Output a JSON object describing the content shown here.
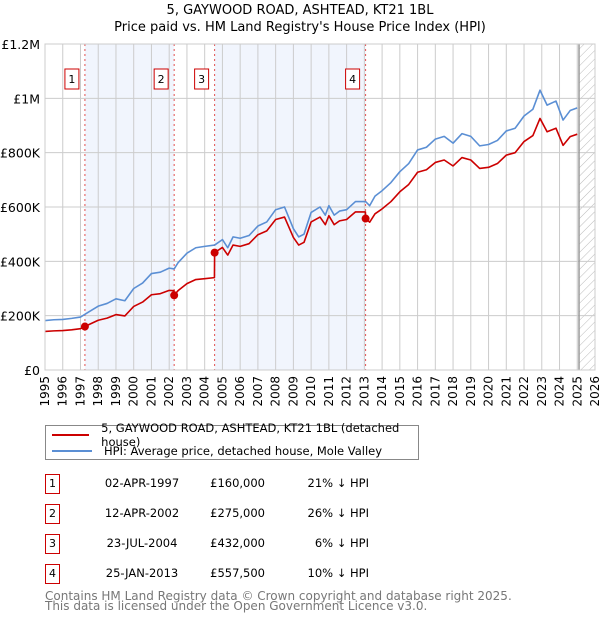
{
  "title": "5, GAYWOOD ROAD, ASHTEAD, KT21 1BL",
  "subtitle": "Price paid vs. HM Land Registry's House Price Index (HPI)",
  "colors": {
    "property": "#cc0000",
    "hpi": "#5b8fd4",
    "shade": "#f1f5fd",
    "grid": "#cccccc"
  },
  "chart_data": {
    "type": "line",
    "title": "5, GAYWOOD ROAD, ASHTEAD, KT21 1BL",
    "xlim": [
      1995,
      2026
    ],
    "ylim": [
      0,
      1200000
    ],
    "x_ticks": [
      "1995",
      "1996",
      "1997",
      "1998",
      "1999",
      "2000",
      "2001",
      "2002",
      "2003",
      "2004",
      "2005",
      "2006",
      "2007",
      "2008",
      "2009",
      "2010",
      "2011",
      "2012",
      "2013",
      "2014",
      "2015",
      "2016",
      "2017",
      "2018",
      "2019",
      "2020",
      "2021",
      "2022",
      "2023",
      "2024",
      "2025",
      "2026"
    ],
    "y_ticks": [
      {
        "v": 0,
        "label": "£0"
      },
      {
        "v": 200000,
        "label": "£200K"
      },
      {
        "v": 400000,
        "label": "£400K"
      },
      {
        "v": 600000,
        "label": "£600K"
      },
      {
        "v": 800000,
        "label": "£800K"
      },
      {
        "v": 1000000,
        "label": "£1M"
      },
      {
        "v": 1200000,
        "label": "£1.2M"
      }
    ],
    "grid": true,
    "forecast_start": 2025.1,
    "series": [
      {
        "name": "5, GAYWOOD ROAD, ASHTEAD, KT21 1BL (detached house)",
        "color": "#cc0000",
        "x": [
          1995,
          1995.5,
          1996,
          1996.5,
          1997,
          1997.25,
          1997.5,
          1998,
          1998.5,
          1999,
          1999.5,
          2000,
          2000.5,
          2001,
          2001.5,
          2002,
          2002.27,
          2002.28,
          2002.5,
          2003,
          2003.5,
          2004,
          2004.55,
          2004.56,
          2005,
          2005.3,
          2005.6,
          2006,
          2006.5,
          2007,
          2007.5,
          2008,
          2008.5,
          2009,
          2009.3,
          2009.6,
          2010,
          2010.5,
          2010.8,
          2011,
          2011.3,
          2011.6,
          2012,
          2012.5,
          2013.06,
          2013.07,
          2013.3,
          2013.6,
          2014,
          2014.5,
          2015,
          2015.5,
          2016,
          2016.5,
          2017,
          2017.5,
          2018,
          2018.5,
          2019,
          2019.5,
          2020,
          2020.5,
          2021,
          2021.5,
          2022,
          2022.5,
          2022.9,
          2023.3,
          2023.8,
          2024.2,
          2024.6,
          2025.0
        ],
        "y": [
          142000,
          144000,
          145000,
          148000,
          152000,
          160000,
          168000,
          183000,
          191000,
          204000,
          199000,
          234000,
          250000,
          277000,
          281000,
          293000,
          292000,
          275000,
          292000,
          318000,
          333000,
          336000,
          340000,
          432000,
          451000,
          423000,
          460000,
          455000,
          465000,
          498000,
          512000,
          554000,
          563000,
          488000,
          460000,
          470000,
          545000,
          563000,
          535000,
          568000,
          535000,
          549000,
          554000,
          582000,
          582000,
          557500,
          544000,
          575000,
          593000,
          620000,
          656000,
          683000,
          728000,
          737000,
          764000,
          773000,
          751000,
          782000,
          773000,
          742000,
          746000,
          760000,
          791000,
          800000,
          841000,
          863000,
          926000,
          877000,
          890000,
          827000,
          859000,
          868000
        ]
      },
      {
        "name": "HPI: Average price, detached house, Mole Valley",
        "color": "#5b8fd4",
        "x": [
          1995,
          1995.5,
          1996,
          1996.5,
          1997,
          1997.25,
          1997.5,
          1998,
          1998.5,
          1999,
          1999.5,
          2000,
          2000.5,
          2001,
          2001.5,
          2002,
          2002.28,
          2002.5,
          2003,
          2003.5,
          2004,
          2004.56,
          2005,
          2005.3,
          2005.6,
          2006,
          2006.5,
          2007,
          2007.5,
          2008,
          2008.5,
          2009,
          2009.3,
          2009.6,
          2010,
          2010.5,
          2010.8,
          2011,
          2011.3,
          2011.6,
          2012,
          2012.5,
          2013.07,
          2013.3,
          2013.6,
          2014,
          2014.5,
          2015,
          2015.5,
          2016,
          2016.5,
          2017,
          2017.5,
          2018,
          2018.5,
          2019,
          2019.5,
          2020,
          2020.5,
          2021,
          2021.5,
          2022,
          2022.5,
          2022.9,
          2023.3,
          2023.8,
          2024.2,
          2024.6,
          2025.0
        ],
        "y": [
          182000,
          185000,
          186000,
          190000,
          195000,
          205000,
          215000,
          235000,
          245000,
          262000,
          255000,
          300000,
          320000,
          355000,
          360000,
          375000,
          372000,
          395000,
          430000,
          450000,
          455000,
          460000,
          480000,
          450000,
          490000,
          485000,
          495000,
          530000,
          545000,
          590000,
          600000,
          520000,
          490000,
          500000,
          580000,
          600000,
          570000,
          605000,
          570000,
          585000,
          590000,
          620000,
          620000,
          605000,
          640000,
          660000,
          690000,
          730000,
          760000,
          810000,
          820000,
          850000,
          860000,
          835000,
          870000,
          860000,
          825000,
          830000,
          845000,
          880000,
          890000,
          935000,
          960000,
          1030000,
          975000,
          990000,
          920000,
          955000,
          965000
        ]
      }
    ],
    "sales": [
      {
        "num": "1",
        "x": 1997.25,
        "price": 160000
      },
      {
        "num": "2",
        "x": 2002.28,
        "price": 275000
      },
      {
        "num": "3",
        "x": 2004.56,
        "price": 432000
      },
      {
        "num": "4",
        "x": 2013.07,
        "price": 557500
      }
    ],
    "legend_placement": "bottom"
  },
  "legend": [
    {
      "label": "5, GAYWOOD ROAD, ASHTEAD, KT21 1BL (detached house)"
    },
    {
      "label": "HPI: Average price, detached house, Mole Valley"
    }
  ],
  "sales_table": [
    {
      "num": "1",
      "date": "02-APR-1997",
      "price": "£160,000",
      "hpi": "21% ↓ HPI"
    },
    {
      "num": "2",
      "date": "12-APR-2002",
      "price": "£275,000",
      "hpi": "26% ↓ HPI"
    },
    {
      "num": "3",
      "date": "23-JUL-2004",
      "price": "£432,000",
      "hpi": "6% ↓ HPI"
    },
    {
      "num": "4",
      "date": "25-JAN-2013",
      "price": "£557,500",
      "hpi": "10% ↓ HPI"
    }
  ],
  "footer": {
    "line1": "Contains HM Land Registry data © Crown copyright and database right 2025.",
    "line2": "This data is licensed under the Open Government Licence v3.0."
  }
}
